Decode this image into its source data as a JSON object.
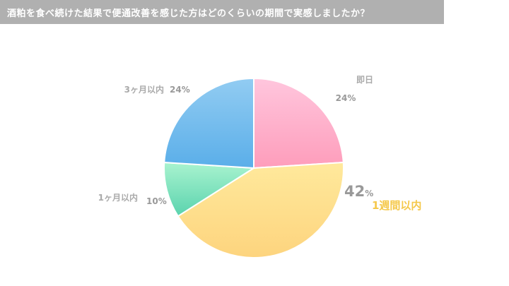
{
  "title": "酒粕を食べ続けた結果で便通改善を感じた方はどのくらいの期間で実感しましたか？",
  "chart_data": {
    "type": "pie",
    "slices": [
      {
        "label": "即日",
        "value": 24,
        "pct_text": "24",
        "unit": "%",
        "color_start": "#ffc6dd",
        "color_end": "#fe9dbb"
      },
      {
        "label": "1週間以内",
        "value": 42,
        "pct_text": "42",
        "unit": "%",
        "color_start": "#ffe99c",
        "color_end": "#fdd47e"
      },
      {
        "label": "1ヶ月以内",
        "value": 10,
        "pct_text": "10",
        "unit": "%",
        "color_start": "#a9f3cf",
        "color_end": "#5ad3ae"
      },
      {
        "label": "3ヶ月以内",
        "value": 24,
        "pct_text": "24",
        "unit": "%",
        "color_start": "#92ccf2",
        "color_end": "#5aaee9"
      }
    ],
    "highlight_color": "#f5c84a",
    "label_color": "#aaaaaa",
    "value_color": "#999999"
  }
}
